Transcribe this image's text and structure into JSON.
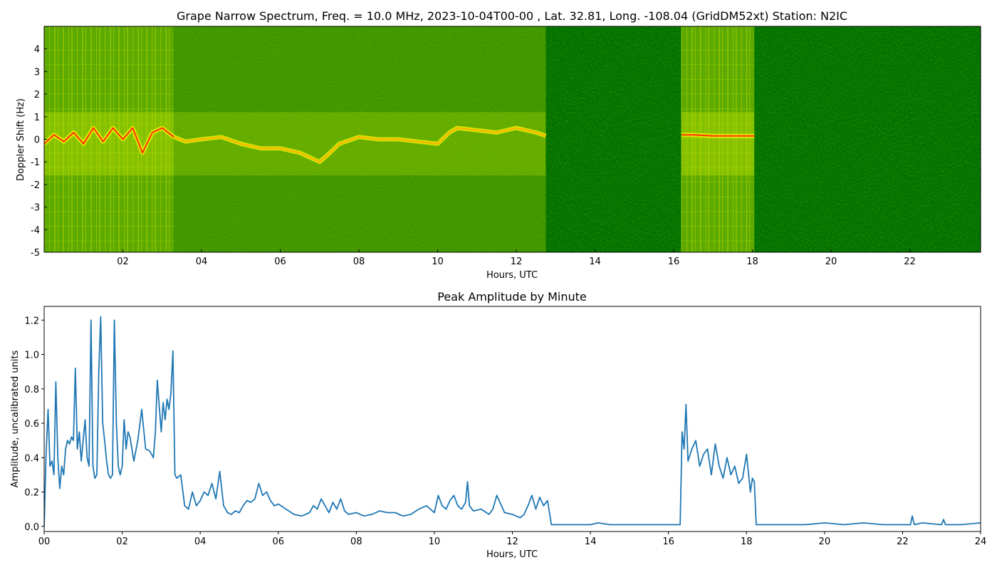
{
  "chart_data": [
    {
      "type": "heatmap",
      "title": "Grape Narrow Spectrum, Freq. = 10.0 MHz, 2023-10-04T00-00 , Lat.  32.81, Long. -108.04 (GridDM52xt) Station: N2IC",
      "xlabel": "Hours, UTC",
      "ylabel": "Doppler Shift (Hz)",
      "xlim": [
        0,
        23.8
      ],
      "ylim": [
        -5,
        5
      ],
      "x_ticks": [
        "02",
        "04",
        "06",
        "08",
        "10",
        "12",
        "14",
        "16",
        "18",
        "20",
        "22"
      ],
      "x_tick_values": [
        2,
        4,
        6,
        8,
        10,
        12,
        14,
        16,
        18,
        20,
        22
      ],
      "y_ticks": [
        "-5",
        "-4",
        "-3",
        "-2",
        "-1",
        "0",
        "1",
        "2",
        "3",
        "4"
      ],
      "y_tick_values": [
        -5,
        -4,
        -3,
        -2,
        -1,
        0,
        1,
        2,
        3,
        4
      ],
      "colors": {
        "background": "#007000",
        "noise": "#3a9a00",
        "signal": "#f5f500",
        "peak": "#ff3000"
      },
      "signal_segments": [
        {
          "start": 0.0,
          "end": 3.3,
          "level": "strong"
        },
        {
          "start": 3.3,
          "end": 12.75,
          "level": "moderate"
        },
        {
          "start": 12.75,
          "end": 16.2,
          "level": "none"
        },
        {
          "start": 16.2,
          "end": 18.05,
          "level": "strong"
        },
        {
          "start": 18.05,
          "end": 23.8,
          "level": "none"
        }
      ],
      "doppler_trace": {
        "x": [
          0,
          0.25,
          0.5,
          0.75,
          1.0,
          1.25,
          1.5,
          1.75,
          2.0,
          2.25,
          2.5,
          2.75,
          3.0,
          3.3,
          3.6,
          4.0,
          4.5,
          5.0,
          5.5,
          6.0,
          6.5,
          7.0,
          7.2,
          7.5,
          8.0,
          8.5,
          9.0,
          9.5,
          10.0,
          10.3,
          10.5,
          11.0,
          11.5,
          12.0,
          12.5,
          12.75,
          16.2,
          16.5,
          17.0,
          17.5,
          18.05
        ],
        "y": [
          -0.2,
          0.2,
          -0.1,
          0.3,
          -0.2,
          0.5,
          -0.1,
          0.5,
          0.0,
          0.5,
          -0.6,
          0.3,
          0.5,
          0.1,
          -0.1,
          0.0,
          0.1,
          -0.2,
          -0.4,
          -0.4,
          -0.6,
          -1.0,
          -0.7,
          -0.2,
          0.1,
          0.0,
          0.0,
          -0.1,
          -0.2,
          0.3,
          0.5,
          0.4,
          0.3,
          0.5,
          0.3,
          0.15,
          0.2,
          0.2,
          0.15,
          0.15,
          0.15
        ]
      }
    },
    {
      "type": "line",
      "title": "Peak Amplitude by Minute",
      "xlabel": "Hours, UTC",
      "ylabel": "Amplitude, uncalibrated units",
      "xlim": [
        0,
        24
      ],
      "ylim": [
        -0.03,
        1.28
      ],
      "x_ticks": [
        "00",
        "02",
        "04",
        "06",
        "08",
        "10",
        "12",
        "14",
        "16",
        "18",
        "20",
        "22",
        "24"
      ],
      "x_tick_values": [
        0,
        2,
        4,
        6,
        8,
        10,
        12,
        14,
        16,
        18,
        20,
        22,
        24
      ],
      "y_ticks": [
        "0.0",
        "0.2",
        "0.4",
        "0.6",
        "0.8",
        "1.0",
        "1.2"
      ],
      "y_tick_values": [
        0.0,
        0.2,
        0.4,
        0.6,
        0.8,
        1.0,
        1.2
      ],
      "line_color": "#1f77b4",
      "series": [
        {
          "x": [
            0.0,
            0.05,
            0.1,
            0.15,
            0.2,
            0.25,
            0.3,
            0.35,
            0.4,
            0.45,
            0.5,
            0.55,
            0.6,
            0.65,
            0.7,
            0.75,
            0.8,
            0.85,
            0.9,
            0.95,
            1.0,
            1.05,
            1.1,
            1.15,
            1.2,
            1.25,
            1.3,
            1.35,
            1.4,
            1.45,
            1.5,
            1.55,
            1.6,
            1.65,
            1.7,
            1.75,
            1.8,
            1.85,
            1.9,
            1.95,
            2.0,
            2.05,
            2.1,
            2.15,
            2.2,
            2.3,
            2.4,
            2.5,
            2.6,
            2.7,
            2.8,
            2.85,
            2.9,
            2.95,
            3.0,
            3.05,
            3.1,
            3.15,
            3.2,
            3.25,
            3.3,
            3.35,
            3.4,
            3.5,
            3.6,
            3.7,
            3.8,
            3.9,
            4.0,
            4.1,
            4.2,
            4.3,
            4.4,
            4.5,
            4.6,
            4.7,
            4.8,
            4.9,
            5.0,
            5.1,
            5.2,
            5.3,
            5.4,
            5.5,
            5.6,
            5.7,
            5.8,
            5.9,
            6.0,
            6.2,
            6.4,
            6.6,
            6.8,
            6.9,
            7.0,
            7.1,
            7.2,
            7.3,
            7.4,
            7.5,
            7.6,
            7.7,
            7.8,
            8.0,
            8.2,
            8.4,
            8.6,
            8.8,
            9.0,
            9.2,
            9.4,
            9.6,
            9.8,
            10.0,
            10.1,
            10.2,
            10.3,
            10.4,
            10.5,
            10.6,
            10.7,
            10.8,
            10.85,
            10.9,
            11.0,
            11.2,
            11.4,
            11.5,
            11.6,
            11.8,
            12.0,
            12.2,
            12.3,
            12.4,
            12.5,
            12.6,
            12.7,
            12.8,
            12.9,
            12.95,
            13.0,
            13.5,
            14.0,
            14.2,
            14.5,
            15.0,
            15.5,
            16.0,
            16.3,
            16.35,
            16.4,
            16.45,
            16.5,
            16.6,
            16.7,
            16.8,
            16.9,
            17.0,
            17.1,
            17.2,
            17.3,
            17.4,
            17.5,
            17.6,
            17.7,
            17.8,
            17.9,
            18.0,
            18.1,
            18.15,
            18.2,
            18.25,
            18.5,
            19.0,
            19.5,
            20.0,
            20.5,
            21.0,
            21.5,
            22.0,
            22.2,
            22.25,
            22.3,
            22.5,
            23.0,
            23.05,
            23.1,
            23.5,
            24.0
          ],
          "y": [
            0.0,
            0.42,
            0.68,
            0.35,
            0.38,
            0.3,
            0.84,
            0.4,
            0.22,
            0.35,
            0.3,
            0.45,
            0.5,
            0.48,
            0.52,
            0.5,
            0.92,
            0.45,
            0.55,
            0.38,
            0.5,
            0.62,
            0.4,
            0.35,
            1.2,
            0.35,
            0.28,
            0.3,
            0.9,
            1.22,
            0.6,
            0.5,
            0.38,
            0.3,
            0.28,
            0.3,
            1.2,
            0.6,
            0.35,
            0.3,
            0.35,
            0.62,
            0.45,
            0.55,
            0.52,
            0.38,
            0.5,
            0.68,
            0.45,
            0.44,
            0.4,
            0.55,
            0.85,
            0.7,
            0.55,
            0.72,
            0.62,
            0.74,
            0.68,
            0.78,
            1.02,
            0.3,
            0.28,
            0.3,
            0.12,
            0.1,
            0.2,
            0.12,
            0.15,
            0.2,
            0.18,
            0.25,
            0.16,
            0.32,
            0.12,
            0.08,
            0.07,
            0.09,
            0.08,
            0.12,
            0.15,
            0.14,
            0.16,
            0.25,
            0.18,
            0.2,
            0.15,
            0.12,
            0.13,
            0.1,
            0.07,
            0.06,
            0.08,
            0.12,
            0.1,
            0.16,
            0.12,
            0.08,
            0.14,
            0.1,
            0.16,
            0.09,
            0.07,
            0.08,
            0.06,
            0.07,
            0.09,
            0.08,
            0.08,
            0.06,
            0.07,
            0.1,
            0.12,
            0.08,
            0.18,
            0.12,
            0.1,
            0.15,
            0.18,
            0.12,
            0.1,
            0.14,
            0.26,
            0.12,
            0.09,
            0.1,
            0.07,
            0.1,
            0.18,
            0.08,
            0.07,
            0.05,
            0.07,
            0.12,
            0.18,
            0.1,
            0.17,
            0.12,
            0.15,
            0.08,
            0.01,
            0.01,
            0.01,
            0.02,
            0.01,
            0.01,
            0.01,
            0.01,
            0.01,
            0.55,
            0.45,
            0.71,
            0.38,
            0.45,
            0.5,
            0.35,
            0.42,
            0.45,
            0.3,
            0.48,
            0.35,
            0.28,
            0.4,
            0.3,
            0.35,
            0.25,
            0.28,
            0.42,
            0.2,
            0.28,
            0.26,
            0.01,
            0.01,
            0.01,
            0.01,
            0.02,
            0.01,
            0.02,
            0.01,
            0.01,
            0.01,
            0.06,
            0.01,
            0.02,
            0.01,
            0.04,
            0.01,
            0.01,
            0.02
          ]
        }
      ]
    }
  ]
}
